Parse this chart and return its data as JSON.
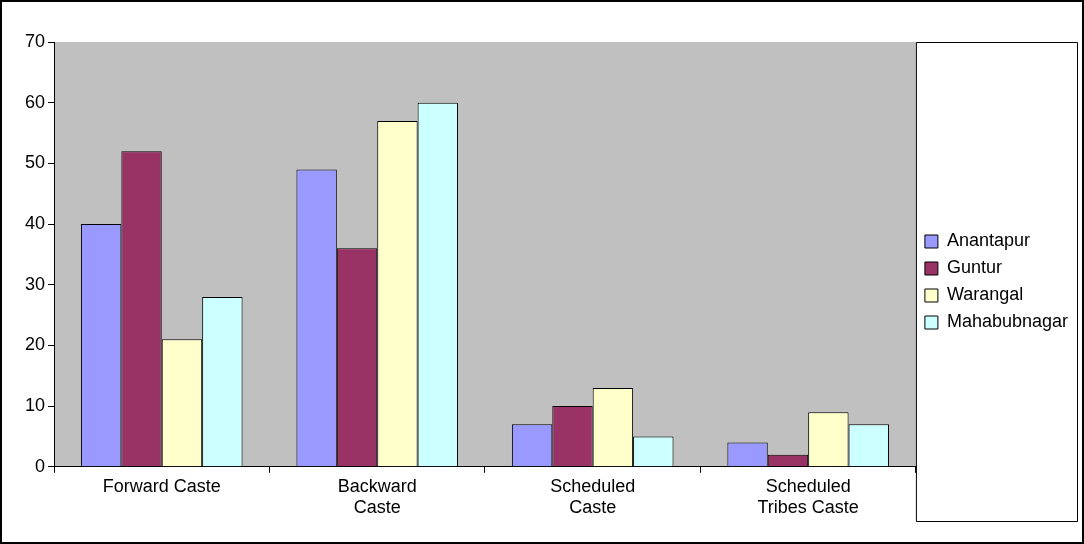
{
  "chart_data": {
    "type": "bar",
    "categories": [
      "Forward Caste",
      "Backward Caste",
      "Scheduled Caste",
      "Scheduled Tribes Caste"
    ],
    "series": [
      {
        "name": "Anantapur",
        "color": "#9999ff",
        "values": [
          40,
          49,
          7,
          4
        ]
      },
      {
        "name": "Guntur",
        "color": "#993366",
        "values": [
          52,
          36,
          10,
          2
        ]
      },
      {
        "name": "Warangal",
        "color": "#ffffcc",
        "values": [
          21,
          57,
          13,
          9
        ]
      },
      {
        "name": "Mahabubnagar",
        "color": "#ccffff",
        "values": [
          28,
          60,
          5,
          7
        ]
      }
    ],
    "ylim": [
      0,
      70
    ],
    "yticks": [
      0,
      10,
      20,
      30,
      40,
      50,
      60,
      70
    ],
    "grid": false,
    "legend": "right"
  }
}
